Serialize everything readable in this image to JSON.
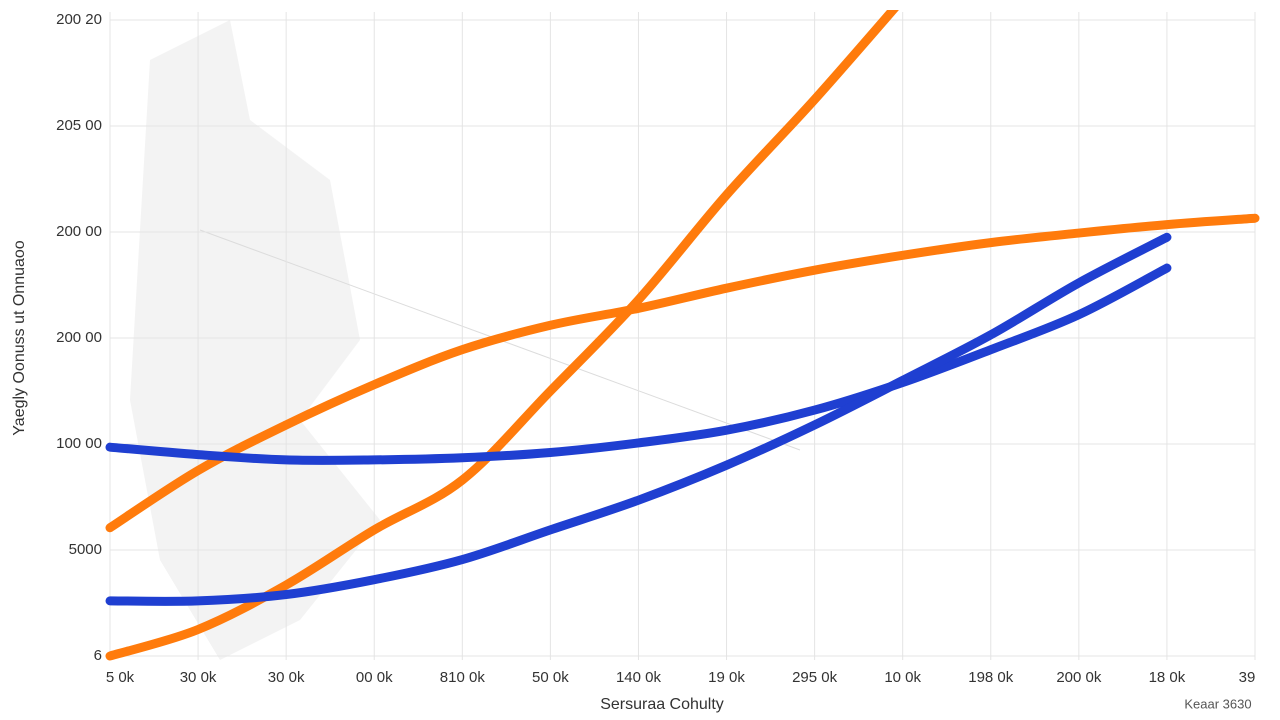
{
  "chart_data": {
    "type": "line",
    "x_label": "Sersuraa Cohulty",
    "y_label": "Yaegly Oonuss ut Onnuaoo",
    "note": "Keaar 3630",
    "categories": [
      "5 0k",
      "30 0k",
      "30 0k",
      "00 0k",
      "810 0k",
      "50 0k",
      "140 0k",
      "19 0k",
      "295 0k",
      "10 0k",
      "198 0k",
      "200 0k",
      "18 0k",
      "39"
    ],
    "ylim": [
      0,
      6
    ],
    "yticks": [
      {
        "value": 0,
        "label": "6"
      },
      {
        "value": 1,
        "label": "5000"
      },
      {
        "value": 2,
        "label": "100 00"
      },
      {
        "value": 3,
        "label": "200 00"
      },
      {
        "value": 4,
        "label": "200 00"
      },
      {
        "value": 5,
        "label": "205 00"
      },
      {
        "value": 6,
        "label": "200 20"
      }
    ],
    "grid": true,
    "series": [
      {
        "color": "#ff7b0c",
        "values": [
          0,
          0.25,
          0.67,
          1.19,
          1.66,
          2.5,
          3.36,
          4.35,
          5.25,
          6.2,
          null,
          null,
          null,
          null
        ]
      },
      {
        "color": "#ff7b0c",
        "values": [
          1.21,
          1.75,
          2.18,
          2.56,
          2.89,
          3.12,
          3.28,
          3.47,
          3.64,
          3.78,
          3.9,
          3.99,
          4.07,
          4.13
        ]
      },
      {
        "color": "#1f3fd1",
        "values": [
          1.97,
          1.9,
          1.85,
          1.85,
          1.87,
          1.92,
          2.01,
          2.13,
          2.32,
          2.58,
          2.89,
          3.22,
          3.66,
          null
        ]
      },
      {
        "color": "#1f3fd1",
        "values": [
          0.52,
          0.52,
          0.58,
          0.72,
          0.91,
          1.19,
          1.47,
          1.8,
          2.18,
          2.6,
          3.03,
          3.52,
          3.95,
          null
        ]
      }
    ]
  }
}
